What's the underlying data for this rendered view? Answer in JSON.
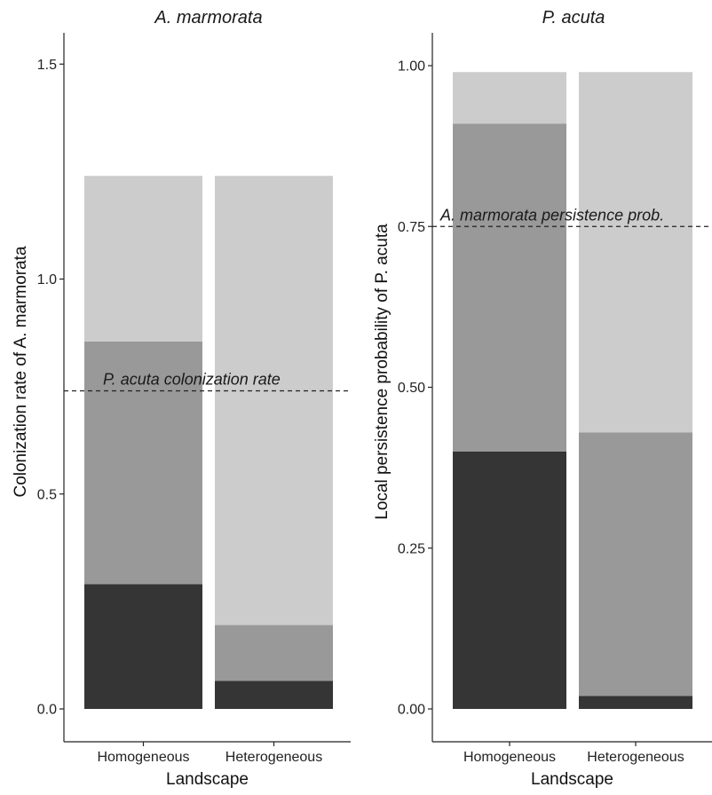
{
  "chart_data": [
    {
      "type": "bar",
      "stacked": true,
      "title": "A. marmorata",
      "xlabel": "Landscape",
      "ylabel": "Colonization rate of A. marmorata",
      "categories": [
        "Homogeneous",
        "Heterogeneous"
      ],
      "ylim": [
        0,
        1.6
      ],
      "yticks": [
        0.0,
        0.5,
        1.0,
        1.5
      ],
      "yticklabels": [
        "0.0",
        "0.5",
        "1.0",
        "1.5"
      ],
      "series": [
        {
          "values": [
            0.29,
            0.065
          ],
          "color": "#353535"
        },
        {
          "values": [
            0.565,
            0.13
          ],
          "color": "#999999"
        },
        {
          "values": [
            0.385,
            1.045
          ],
          "color": "#cccccc"
        }
      ],
      "reference_line": {
        "value": 0.74,
        "label": "P. acuta colonization rate"
      },
      "grid": false,
      "legend": "none"
    },
    {
      "type": "bar",
      "stacked": true,
      "title": "P. acuta",
      "xlabel": "Landscape",
      "ylabel": "Local persistence probability of P. acuta",
      "categories": [
        "Homogeneous",
        "Heterogeneous"
      ],
      "ylim": [
        0,
        1.05
      ],
      "yticks": [
        0.0,
        0.25,
        0.5,
        0.75,
        1.0
      ],
      "yticklabels": [
        "0.00",
        "0.25",
        "0.50",
        "0.75",
        "1.00"
      ],
      "series": [
        {
          "values": [
            0.4,
            0.02
          ],
          "color": "#353535"
        },
        {
          "values": [
            0.51,
            0.41
          ],
          "color": "#999999"
        },
        {
          "values": [
            0.08,
            0.56
          ],
          "color": "#cccccc"
        }
      ],
      "reference_line": {
        "value": 0.75,
        "label": "A. marmorata persistence prob."
      },
      "grid": false,
      "legend": "none"
    }
  ]
}
